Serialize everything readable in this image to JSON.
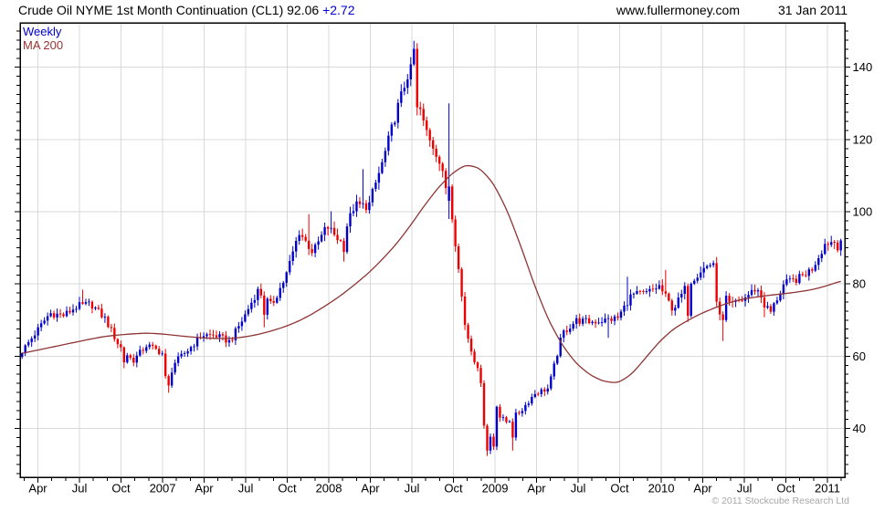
{
  "header": {
    "title_text": "Crude Oil NYME 1st Month Continuation (CL1)",
    "last": "92.06",
    "change": "+2.72",
    "website": "www.fullermoney.com",
    "date": "31 Jan 2011"
  },
  "footer": {
    "copyright": "© 2011 Stockcube Research Ltd"
  },
  "chart_data": {
    "type": "candlestick",
    "title": "Crude Oil NYME 1st Month Continuation (CL1)",
    "timeframe": "Weekly",
    "last_close": 92.06,
    "change": 2.72,
    "legend": [
      {
        "label": "Weekly",
        "color": "#0000cc"
      },
      {
        "label": "MA 200",
        "color": "#993333"
      }
    ],
    "colors": {
      "up_candle": "#0000cc",
      "down_candle": "#ee0000",
      "ma_line": "#8e3434",
      "grid": "#d9d9d9",
      "border": "#000000",
      "copyright": "#a8a8a8"
    },
    "y_axis": {
      "side": "right",
      "ticks": [
        40,
        60,
        80,
        100,
        120,
        140
      ],
      "minor_step": 2.5,
      "range": [
        26.5,
        152.3
      ]
    },
    "x_axis": {
      "start_month": "2006-02",
      "end_month": "2011-02",
      "minor_tick": "monthly",
      "quarter_labels": [
        "Apr",
        "Jul",
        "Oct",
        "2007",
        "Apr",
        "Jul",
        "Oct",
        "2008",
        "Apr",
        "Jul",
        "Oct",
        "2009",
        "Apr",
        "Jul",
        "Oct",
        "2010",
        "Apr",
        "Jul",
        "Oct",
        "2011"
      ]
    },
    "series": [
      {
        "name": "Weekly",
        "type": "candlestick",
        "up_color": "#0000cc",
        "down_color": "#ee0000",
        "weeks": 258,
        "monthly_closes": {
          "start_month": "2006-02",
          "values": [
            61.4,
            66.6,
            71.9,
            71.3,
            73.9,
            74.4,
            70.3,
            62.9,
            58.7,
            63.1,
            61.1,
            58.1,
            61.8,
            65.9,
            65.7,
            64.0,
            70.7,
            78.2,
            74.0,
            81.7,
            94.5,
            88.7,
            96.0,
            91.7,
            101.8,
            101.6,
            113.5,
            127.4,
            140.0,
            124.1,
            115.5,
            100.6,
            67.8,
            54.4,
            44.6,
            41.7,
            44.8,
            49.7,
            51.1,
            66.3,
            69.9,
            69.5,
            69.9,
            70.6,
            77.0,
            77.3,
            79.4,
            72.9,
            79.7,
            83.8,
            86.2,
            74.0,
            75.6,
            78.9,
            71.9,
            80.0,
            81.4,
            84.1,
            91.4,
            92.06
          ]
        },
        "key_weeks": [
          {
            "week": 19,
            "high": 78.4
          },
          {
            "week": 32,
            "low": 56.7,
            "close": 58.3
          },
          {
            "week": 45,
            "close": 54.5
          },
          {
            "week": 46,
            "close": 51.9,
            "low": 49.9
          },
          {
            "week": 47,
            "close": 55.5
          },
          {
            "week": 76,
            "low": 68.0,
            "close": 71.5
          },
          {
            "week": 90,
            "high": 99.3
          },
          {
            "week": 97,
            "high": 100.1
          },
          {
            "week": 101,
            "low": 86.2,
            "close": 88.9
          },
          {
            "week": 107,
            "high": 111.8
          },
          {
            "week": 109,
            "low": 99.5,
            "close": 102.6
          },
          {
            "week": 123,
            "high": 147.3,
            "close": 145.1
          },
          {
            "week": 124,
            "close": 128.9
          },
          {
            "week": 134,
            "open": 103.0,
            "close": 107.0,
            "high": 130.0,
            "low": 98.0
          },
          {
            "week": 145,
            "close": 40.8
          },
          {
            "week": 146,
            "low": 32.4,
            "close": 33.9
          },
          {
            "week": 147,
            "close": 37.7
          },
          {
            "week": 148,
            "close": 35.0
          },
          {
            "week": 149,
            "close": 46.0
          },
          {
            "week": 154,
            "low": 33.9,
            "close": 37.5
          },
          {
            "week": 184,
            "low": 65.1
          },
          {
            "week": 190,
            "high": 82.0
          },
          {
            "week": 202,
            "high": 83.9
          },
          {
            "week": 209,
            "low": 69.5,
            "close": 71.2
          },
          {
            "week": 218,
            "close": 75.1
          },
          {
            "week": 219,
            "close": 71.6
          },
          {
            "week": 220,
            "low": 64.2,
            "close": 70.0
          },
          {
            "week": 233,
            "low": 70.8,
            "close": 73.5
          },
          {
            "week": 255,
            "close": 91.5
          },
          {
            "week": 256,
            "close": 89.3
          },
          {
            "week": 257,
            "open": 89.3,
            "close": 92.06,
            "low": 87.8
          }
        ]
      },
      {
        "name": "MA 200",
        "type": "line",
        "color": "#8e3434",
        "monthly_values": {
          "start_month": "2006-02",
          "values": [
            60.8,
            61.6,
            62.4,
            63.2,
            64.0,
            64.8,
            65.5,
            65.9,
            66.2,
            66.4,
            66.2,
            65.8,
            65.4,
            65.1,
            64.9,
            64.9,
            65.3,
            66.0,
            67.0,
            68.2,
            69.8,
            71.8,
            74.2,
            76.8,
            79.8,
            83.0,
            86.8,
            91.0,
            96.0,
            101.5,
            106.5,
            110.5,
            113.0,
            112.2,
            108.0,
            100.5,
            90.5,
            79.5,
            70.0,
            63.0,
            58.0,
            54.8,
            53.0,
            52.6,
            55.0,
            59.5,
            64.0,
            67.5,
            69.8,
            71.8,
            73.4,
            74.8,
            75.8,
            76.4,
            76.9,
            77.3,
            77.8,
            78.4,
            79.4,
            80.7
          ]
        }
      }
    ]
  }
}
